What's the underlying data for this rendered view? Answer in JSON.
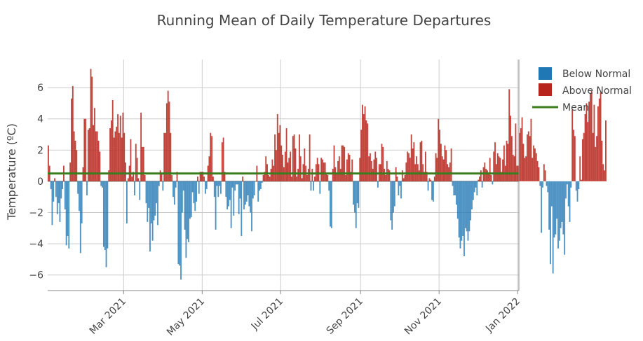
{
  "chart_data": {
    "type": "bar",
    "title": "Running Mean of Daily Temperature Departures",
    "xlabel": "",
    "ylabel": "Temperature (ºC)",
    "ylim": [
      -7,
      7.8
    ],
    "y_ticks": [
      -6,
      -4,
      -2,
      0,
      2,
      4,
      6
    ],
    "y_tick_labels": [
      "−6",
      "−4",
      "−2",
      "0",
      "2",
      "4",
      "6"
    ],
    "x_range": [
      "2021-01-01",
      "2022-01-02"
    ],
    "x_ticks": [
      "2021-03-01",
      "2021-05-01",
      "2021-07-01",
      "2021-09-01",
      "2021-11-01",
      "2022-01-01"
    ],
    "x_tick_labels": [
      "Mar 2021",
      "May 2021",
      "Jul 2021",
      "Sep 2021",
      "Nov 2021",
      "Jan 2022"
    ],
    "grid": true,
    "mean": 0.5,
    "start_date": "2021-01-01",
    "daily_departures": [
      2.3,
      1.0,
      -0.5,
      -2.8,
      -1.3,
      0.2,
      -1.0,
      -2.1,
      -1.4,
      -2.6,
      -1.1,
      -0.5,
      1.0,
      -1.8,
      -4.1,
      -3.5,
      -4.3,
      1.2,
      5.3,
      6.1,
      3.2,
      2.6,
      2.0,
      -0.8,
      -1.9,
      -4.6,
      -2.7,
      0.9,
      4.0,
      4.0,
      -0.9,
      3.3,
      3.4,
      7.2,
      6.7,
      3.6,
      4.7,
      3.2,
      3.2,
      2.6,
      1.9,
      -0.3,
      -0.4,
      -4.2,
      -4.4,
      -5.5,
      -4.3,
      0.7,
      3.4,
      3.9,
      5.2,
      2.8,
      3.2,
      3.5,
      4.3,
      3.1,
      4.2,
      2.8,
      4.4,
      3.1,
      1.2,
      -2.7,
      0.2,
      1.0,
      2.7,
      0.3,
      0.6,
      -0.9,
      2.4,
      1.5,
      0.2,
      -1.2,
      4.4,
      2.2,
      2.2,
      0.4,
      -1.4,
      -2.6,
      -1.7,
      -4.5,
      -2.7,
      -3.8,
      -2.5,
      -2.2,
      -1.4,
      -2.8,
      -0.3,
      0.7,
      0.5,
      -0.6,
      3.1,
      3.1,
      5.0,
      5.8,
      5.1,
      3.1,
      0.4,
      -1.0,
      -1.5,
      -0.4,
      0.6,
      -5.3,
      -5.4,
      -6.3,
      -2.0,
      -0.6,
      -3.1,
      -4.9,
      -3.7,
      -3.9,
      -2.4,
      -2.3,
      -0.7,
      -1.4,
      -1.9,
      -1.3,
      0.3,
      -0.8,
      0.6,
      0.6,
      0.6,
      0.3,
      -0.8,
      -0.5,
      1.0,
      1.6,
      3.1,
      2.9,
      0.3,
      -1.0,
      -3.1,
      -0.3,
      -1.0,
      -0.3,
      -0.8,
      2.5,
      2.8,
      0.6,
      -1.0,
      -1.8,
      -1.6,
      -1.2,
      -3.0,
      -0.4,
      -2.2,
      -0.6,
      -0.2,
      -0.2,
      -2.1,
      -1.1,
      -3.5,
      0.3,
      -1.8,
      -1.5,
      -1.3,
      -0.9,
      -1.6,
      -2.0,
      -3.2,
      -1.1,
      -0.9,
      0.0,
      1.0,
      -1.3,
      -0.6,
      -0.5,
      -0.1,
      0.4,
      0.6,
      1.6,
      1.1,
      0.4,
      0.3,
      0.8,
      1.4,
      1.0,
      3.0,
      2.0,
      4.3,
      3.1,
      3.6,
      2.3,
      1.7,
      0.9,
      1.9,
      3.4,
      1.2,
      1.5,
      1.9,
      0.3,
      2.9,
      3.0,
      2.1,
      0.3,
      0.8,
      3.0,
      1.6,
      0.2,
      1.1,
      2.1,
      1.0,
      0.4,
      0.8,
      3.0,
      -0.6,
      0.8,
      -0.6,
      0.3,
      1.1,
      1.5,
      1.1,
      -0.8,
      1.5,
      1.4,
      1.2,
      1.2,
      0.5,
      0.4,
      -0.6,
      -2.9,
      -3.0,
      0.8,
      2.3,
      0.9,
      0.5,
      1.3,
      1.6,
      0.8,
      2.3,
      2.3,
      2.2,
      0.4,
      1.4,
      1.8,
      1.7,
      0.6,
      1.4,
      -1.5,
      -2.0,
      -3.0,
      -1.4,
      -1.7,
      1.5,
      3.3,
      4.9,
      4.3,
      4.8,
      3.9,
      3.7,
      1.6,
      1.8,
      1.3,
      0.8,
      1.4,
      1.9,
      1.5,
      -0.4,
      1.1,
      1.1,
      2.4,
      2.2,
      0.8,
      0.4,
      1.3,
      0.8,
      0.7,
      -2.5,
      -3.1,
      -2.0,
      -1.6,
      0.9,
      0.3,
      -0.9,
      -0.3,
      -1.1,
      0.7,
      0.2,
      0.4,
      1.2,
      1.9,
      1.8,
      1.5,
      3.0,
      2.1,
      2.5,
      1.1,
      1.6,
      1.1,
      0.7,
      2.5,
      2.6,
      1.1,
      0.6,
      1.9,
      0.6,
      -0.6,
      0.2,
      0.1,
      -1.2,
      -1.3,
      0.3,
      1.8,
      1.5,
      4.0,
      3.3,
      2.4,
      1.6,
      1.4,
      2.3,
      2.0,
      1.1,
      0.9,
      1.2,
      2.1,
      -0.3,
      -0.9,
      -0.9,
      -1.5,
      -2.4,
      -3.6,
      -4.3,
      -3.8,
      -3.5,
      -4.8,
      -3.0,
      -3.2,
      -3.8,
      -3.2,
      -2.5,
      -1.8,
      -1.2,
      -0.7,
      -0.4,
      -0.9,
      0.1,
      0.3,
      0.7,
      -0.4,
      0.9,
      1.2,
      0.8,
      0.7,
      0.5,
      1.5,
      0.4,
      -0.2,
      1.9,
      2.5,
      1.1,
      1.8,
      1.6,
      1.5,
      0.6,
      1.4,
      2.3,
      1.0,
      2.6,
      2.4,
      5.9,
      4.2,
      2.9,
      1.7,
      1.6,
      3.7,
      1.0,
      1.0,
      3.1,
      3.4,
      4.1,
      2.4,
      1.5,
      1.6,
      3.0,
      3.2,
      2.9,
      4.0,
      1.5,
      2.3,
      2.1,
      1.8,
      1.3,
      0.9,
      -0.3,
      -3.3,
      -0.4,
      1.1,
      0.7,
      -0.3,
      -0.7,
      -3.1,
      -5.3,
      -1.6,
      -5.9,
      -3.6,
      -3.4,
      -2.4,
      -4.3,
      -3.8,
      -3.0,
      -2.6,
      -3.4,
      -4.7,
      -1.1,
      -0.2,
      -1.6,
      -2.6,
      -0.4,
      4.6,
      3.3,
      2.9,
      -0.6,
      -1.3,
      -0.5,
      1.6,
      0.1,
      2.7,
      3.1,
      4.3,
      5.0,
      3.8,
      5.1,
      5.6,
      5.8,
      3.1,
      4.9,
      2.2,
      2.9,
      4.8,
      5.3,
      5.7,
      2.6,
      1.1,
      0.7,
      3.9
    ],
    "series": [
      {
        "name": "Below Normal",
        "color": "#1f77b4"
      },
      {
        "name": "Above Normal",
        "color": "#b6241b"
      },
      {
        "name": "Mean",
        "color": "#3a7d1e",
        "value": 0.5
      }
    ],
    "legend_position": "top-right"
  }
}
